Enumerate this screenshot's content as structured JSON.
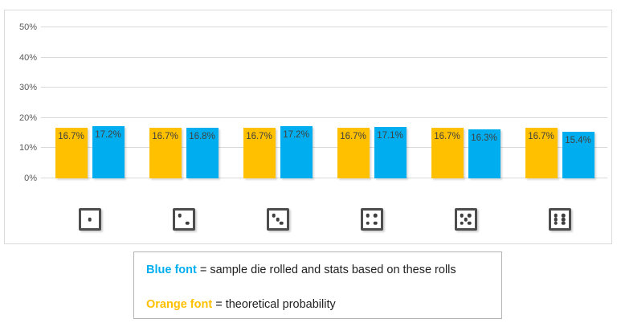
{
  "chart_data": {
    "type": "bar",
    "title": "",
    "xlabel": "",
    "ylabel": "",
    "categories": [
      "1",
      "2",
      "3",
      "4",
      "5",
      "6"
    ],
    "series": [
      {
        "key": "theoretical",
        "name": "theoretical probability",
        "color": "#FFC000",
        "values": [
          16.7,
          16.7,
          16.7,
          16.7,
          16.7,
          16.7
        ],
        "labels": [
          "16.7%",
          "16.7%",
          "16.7%",
          "16.7%",
          "16.7%",
          "16.7%"
        ]
      },
      {
        "key": "sample",
        "name": "sample die rolled and stats based on these rolls",
        "color": "#00AEEF",
        "values": [
          17.2,
          16.8,
          17.2,
          17.1,
          16.3,
          15.4
        ],
        "labels": [
          "17.2%",
          "16.8%",
          "17.2%",
          "17.1%",
          "16.3%",
          "15.4%"
        ]
      }
    ],
    "ylim": [
      0,
      50
    ],
    "yticks": [
      {
        "value": 0,
        "label": "0%"
      },
      {
        "value": 10,
        "label": "10%"
      },
      {
        "value": 20,
        "label": "20%"
      },
      {
        "value": 30,
        "label": "30%"
      },
      {
        "value": 40,
        "label": "40%"
      },
      {
        "value": 50,
        "label": "50%"
      }
    ],
    "grid": true,
    "legend_position": "custom text box below chart",
    "bar_label_color": "#404040",
    "axis_label_color": "#595959",
    "gridline_color": "#d9d9d9"
  },
  "dice": [
    {
      "face": 1,
      "pips": [
        "C"
      ]
    },
    {
      "face": 2,
      "pips": [
        "TL",
        "BR"
      ]
    },
    {
      "face": 3,
      "pips": [
        "TL",
        "C",
        "BR"
      ]
    },
    {
      "face": 4,
      "pips": [
        "TL",
        "TR",
        "BL",
        "BR"
      ]
    },
    {
      "face": 5,
      "pips": [
        "TL",
        "TR",
        "C",
        "BL",
        "BR"
      ]
    },
    {
      "face": 6,
      "pips": [
        "TL",
        "TR",
        "ML",
        "MR",
        "BL",
        "BR"
      ]
    }
  ],
  "legend": {
    "line1": {
      "term": "Blue font",
      "term_color": "#00AEEF",
      "rest": " = sample die rolled and stats based on these rolls"
    },
    "line2": {
      "term": "Orange font",
      "term_color": "#FFC000",
      "rest": " = theoretical probability"
    }
  }
}
